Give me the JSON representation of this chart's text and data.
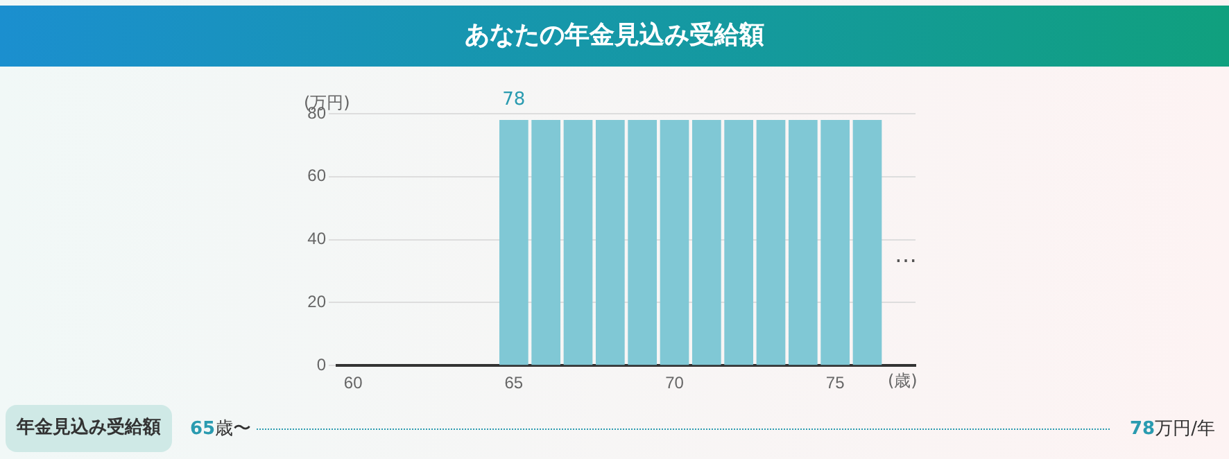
{
  "chart_data": {
    "type": "bar",
    "title": "あなたの年金見込み受給額",
    "ylabel": "(万円)",
    "xlabel": "(歳)",
    "categories": [
      "60",
      null,
      null,
      null,
      null,
      "65",
      null,
      null,
      null,
      null,
      "70",
      null,
      null,
      null,
      null,
      "75",
      null,
      null
    ],
    "values": [
      null,
      null,
      null,
      null,
      null,
      78,
      78,
      78,
      78,
      78,
      78,
      78,
      78,
      78,
      78,
      78,
      78,
      null
    ],
    "value_labels": [
      null,
      null,
      null,
      null,
      null,
      "78",
      null,
      null,
      null,
      null,
      null,
      null,
      null,
      null,
      null,
      null,
      null,
      null
    ],
    "color": "#80c8d5",
    "ylim": [
      0,
      80
    ],
    "yticks": [
      0,
      20,
      40,
      60,
      80
    ],
    "grid": "y",
    "legend": false,
    "annotations": [
      "…",
      "年金見込み受給額",
      "65歳〜",
      "78万円/年"
    ]
  }
}
